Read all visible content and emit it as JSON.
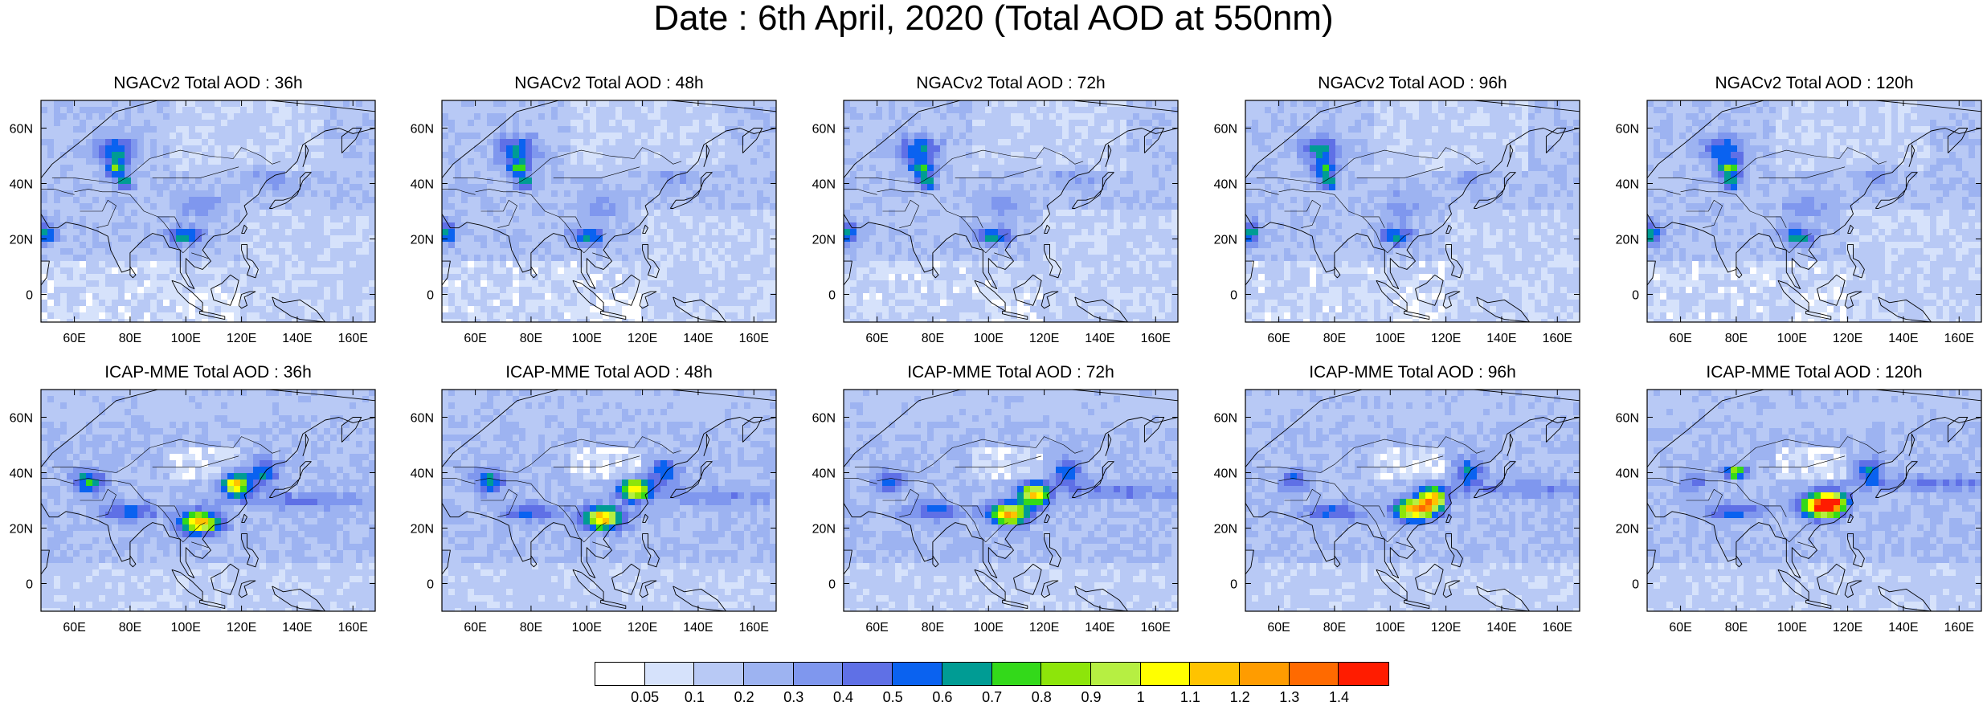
{
  "title": "Date : 6th April, 2020 (Total AOD at 550nm)",
  "panels": [
    {
      "row": 0,
      "title": "NGACv2 Total AOD : 36h"
    },
    {
      "row": 0,
      "title": "NGACv2 Total AOD : 48h"
    },
    {
      "row": 0,
      "title": "NGACv2 Total AOD : 72h"
    },
    {
      "row": 0,
      "title": "NGACv2 Total AOD : 96h"
    },
    {
      "row": 0,
      "title": "NGACv2 Total AOD : 120h"
    },
    {
      "row": 1,
      "title": "ICAP-MME Total AOD : 36h"
    },
    {
      "row": 1,
      "title": "ICAP-MME Total AOD : 48h"
    },
    {
      "row": 1,
      "title": "ICAP-MME Total AOD : 72h"
    },
    {
      "row": 1,
      "title": "ICAP-MME Total AOD : 96h"
    },
    {
      "row": 1,
      "title": "ICAP-MME Total AOD : 120h"
    }
  ],
  "map_extent": {
    "lon": [
      48,
      168
    ],
    "lat": [
      -10,
      70
    ]
  },
  "lon_ticks": [
    "60E",
    "80E",
    "100E",
    "120E",
    "140E",
    "160E"
  ],
  "lon_tick_values": [
    60,
    80,
    100,
    120,
    140,
    160
  ],
  "lat_ticks": [
    "60N",
    "40N",
    "20N",
    "0"
  ],
  "lat_tick_values": [
    60,
    40,
    20,
    0
  ],
  "colorbar": {
    "colors": [
      "#ffffff",
      "#d6e2fb",
      "#b8c9f5",
      "#9db3f1",
      "#7f97ee",
      "#5f70e6",
      "#0a62f0",
      "#009c94",
      "#33d91a",
      "#8de50a",
      "#b6ef42",
      "#ffff00",
      "#ffc300",
      "#ff9c00",
      "#ff6a00",
      "#ff1c00"
    ],
    "labels": [
      "0.05",
      "0.1",
      "0.2",
      "0.3",
      "0.4",
      "0.5",
      "0.6",
      "0.7",
      "0.8",
      "0.9",
      "1",
      "1.1",
      "1.2",
      "1.3",
      "1.4"
    ]
  },
  "colors": {
    "ocean": "#dce6fb",
    "land_base": "#b2c4f4",
    "coast": "#000000"
  }
}
